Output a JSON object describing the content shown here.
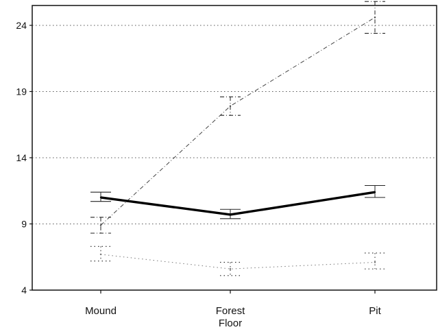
{
  "chart_data": {
    "type": "line",
    "categories": [
      "Mound",
      "Forest Floor",
      "Pit"
    ],
    "category_labels": [
      [
        "Mound"
      ],
      [
        "Forest",
        "Floor"
      ],
      [
        "Pit"
      ]
    ],
    "ylim": [
      4,
      25.5
    ],
    "yticks": [
      4,
      9,
      14,
      19,
      24
    ],
    "grid": true,
    "series": [
      {
        "style": "dash-dot",
        "color": "#444444",
        "values": [
          8.9,
          17.9,
          24.6
        ],
        "err_low": [
          8.3,
          17.2,
          23.4
        ],
        "err_high": [
          9.5,
          18.6,
          25.8
        ]
      },
      {
        "style": "solid-bold",
        "color": "#000000",
        "values": [
          11.0,
          9.7,
          11.4
        ],
        "err_low": [
          10.7,
          9.4,
          11.0
        ],
        "err_high": [
          11.4,
          10.1,
          11.9
        ]
      },
      {
        "style": "dotted",
        "color": "#777777",
        "values": [
          6.7,
          5.6,
          6.1
        ],
        "err_low": [
          6.2,
          5.1,
          5.6
        ],
        "err_high": [
          7.3,
          6.1,
          6.8
        ]
      }
    ]
  }
}
